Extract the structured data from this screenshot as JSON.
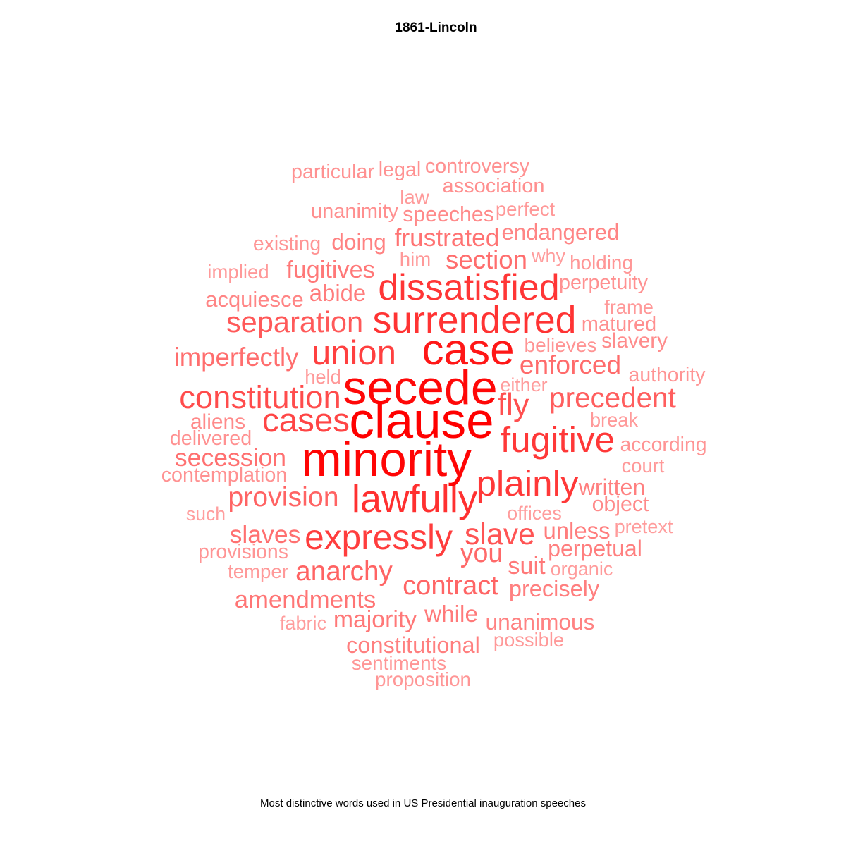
{
  "chart_data": {
    "type": "wordcloud",
    "title": "1861-Lincoln",
    "caption": "Most distinctive words used in US Presidential inauguration speeches",
    "color": "#ff0000",
    "words": [
      {
        "word": "clause",
        "weight": 1.0
      },
      {
        "word": "minority",
        "weight": 0.98
      },
      {
        "word": "secede",
        "weight": 0.97
      },
      {
        "word": "case",
        "weight": 0.91
      },
      {
        "word": "lawfully",
        "weight": 0.82
      },
      {
        "word": "surrendered",
        "weight": 0.81
      },
      {
        "word": "dissatisfied",
        "weight": 0.79
      },
      {
        "word": "plainly",
        "weight": 0.78
      },
      {
        "word": "fugitive",
        "weight": 0.78
      },
      {
        "word": "expressly",
        "weight": 0.76
      },
      {
        "word": "union",
        "weight": 0.75
      },
      {
        "word": "cases",
        "weight": 0.73
      },
      {
        "word": "constitution",
        "weight": 0.7
      },
      {
        "word": "fly",
        "weight": 0.69
      },
      {
        "word": "slave",
        "weight": 0.66
      },
      {
        "word": "separation",
        "weight": 0.64
      },
      {
        "word": "precedent",
        "weight": 0.62
      },
      {
        "word": "provision",
        "weight": 0.6
      },
      {
        "word": "anarchy",
        "weight": 0.59
      },
      {
        "word": "contract",
        "weight": 0.58
      },
      {
        "word": "you",
        "weight": 0.57
      },
      {
        "word": "enforced",
        "weight": 0.56
      },
      {
        "word": "section",
        "weight": 0.55
      },
      {
        "word": "imperfectly",
        "weight": 0.55
      },
      {
        "word": "secession",
        "weight": 0.53
      },
      {
        "word": "slaves",
        "weight": 0.53
      },
      {
        "word": "frustrated",
        "weight": 0.52
      },
      {
        "word": "amendments",
        "weight": 0.51
      },
      {
        "word": "fugitives",
        "weight": 0.5
      },
      {
        "word": "suit",
        "weight": 0.5
      },
      {
        "word": "majority",
        "weight": 0.49
      },
      {
        "word": "while",
        "weight": 0.48
      },
      {
        "word": "unless",
        "weight": 0.47
      },
      {
        "word": "abide",
        "weight": 0.47
      },
      {
        "word": "constitutional",
        "weight": 0.46
      },
      {
        "word": "precisely",
        "weight": 0.46
      },
      {
        "word": "written",
        "weight": 0.45
      },
      {
        "word": "perpetual",
        "weight": 0.45
      },
      {
        "word": "doing",
        "weight": 0.44
      },
      {
        "word": "unanimous",
        "weight": 0.44
      },
      {
        "word": "endangered",
        "weight": 0.43
      },
      {
        "word": "acquiesce",
        "weight": 0.42
      },
      {
        "word": "object",
        "weight": 0.4
      },
      {
        "word": "speeches",
        "weight": 0.4
      },
      {
        "word": "aliens",
        "weight": 0.39
      },
      {
        "word": "slavery",
        "weight": 0.38
      },
      {
        "word": "matured",
        "weight": 0.36
      },
      {
        "word": "unanimity",
        "weight": 0.36
      },
      {
        "word": "association",
        "weight": 0.36
      },
      {
        "word": "controversy",
        "weight": 0.35
      },
      {
        "word": "perpetuity",
        "weight": 0.35
      },
      {
        "word": "particular",
        "weight": 0.35
      },
      {
        "word": "legal",
        "weight": 0.35
      },
      {
        "word": "delivered",
        "weight": 0.35
      },
      {
        "word": "contemplation",
        "weight": 0.35
      },
      {
        "word": "existing",
        "weight": 0.34
      },
      {
        "word": "authority",
        "weight": 0.34
      },
      {
        "word": "according",
        "weight": 0.34
      },
      {
        "word": "provisions",
        "weight": 0.34
      },
      {
        "word": "believes",
        "weight": 0.33
      },
      {
        "word": "holding",
        "weight": 0.32
      },
      {
        "word": "sentiments",
        "weight": 0.32
      },
      {
        "word": "proposition",
        "weight": 0.32
      },
      {
        "word": "perfect",
        "weight": 0.31
      },
      {
        "word": "him",
        "weight": 0.31
      },
      {
        "word": "law",
        "weight": 0.31
      },
      {
        "word": "implied",
        "weight": 0.31
      },
      {
        "word": "temper",
        "weight": 0.31
      },
      {
        "word": "frame",
        "weight": 0.3
      },
      {
        "word": "court",
        "weight": 0.3
      },
      {
        "word": "held",
        "weight": 0.3
      },
      {
        "word": "break",
        "weight": 0.3
      },
      {
        "word": "possible",
        "weight": 0.3
      },
      {
        "word": "fabric",
        "weight": 0.29
      },
      {
        "word": "pretext",
        "weight": 0.29
      },
      {
        "word": "organic",
        "weight": 0.29
      },
      {
        "word": "offices",
        "weight": 0.29
      },
      {
        "word": "either",
        "weight": 0.28
      },
      {
        "word": "why",
        "weight": 0.28
      },
      {
        "word": "such",
        "weight": 0.27
      }
    ]
  }
}
